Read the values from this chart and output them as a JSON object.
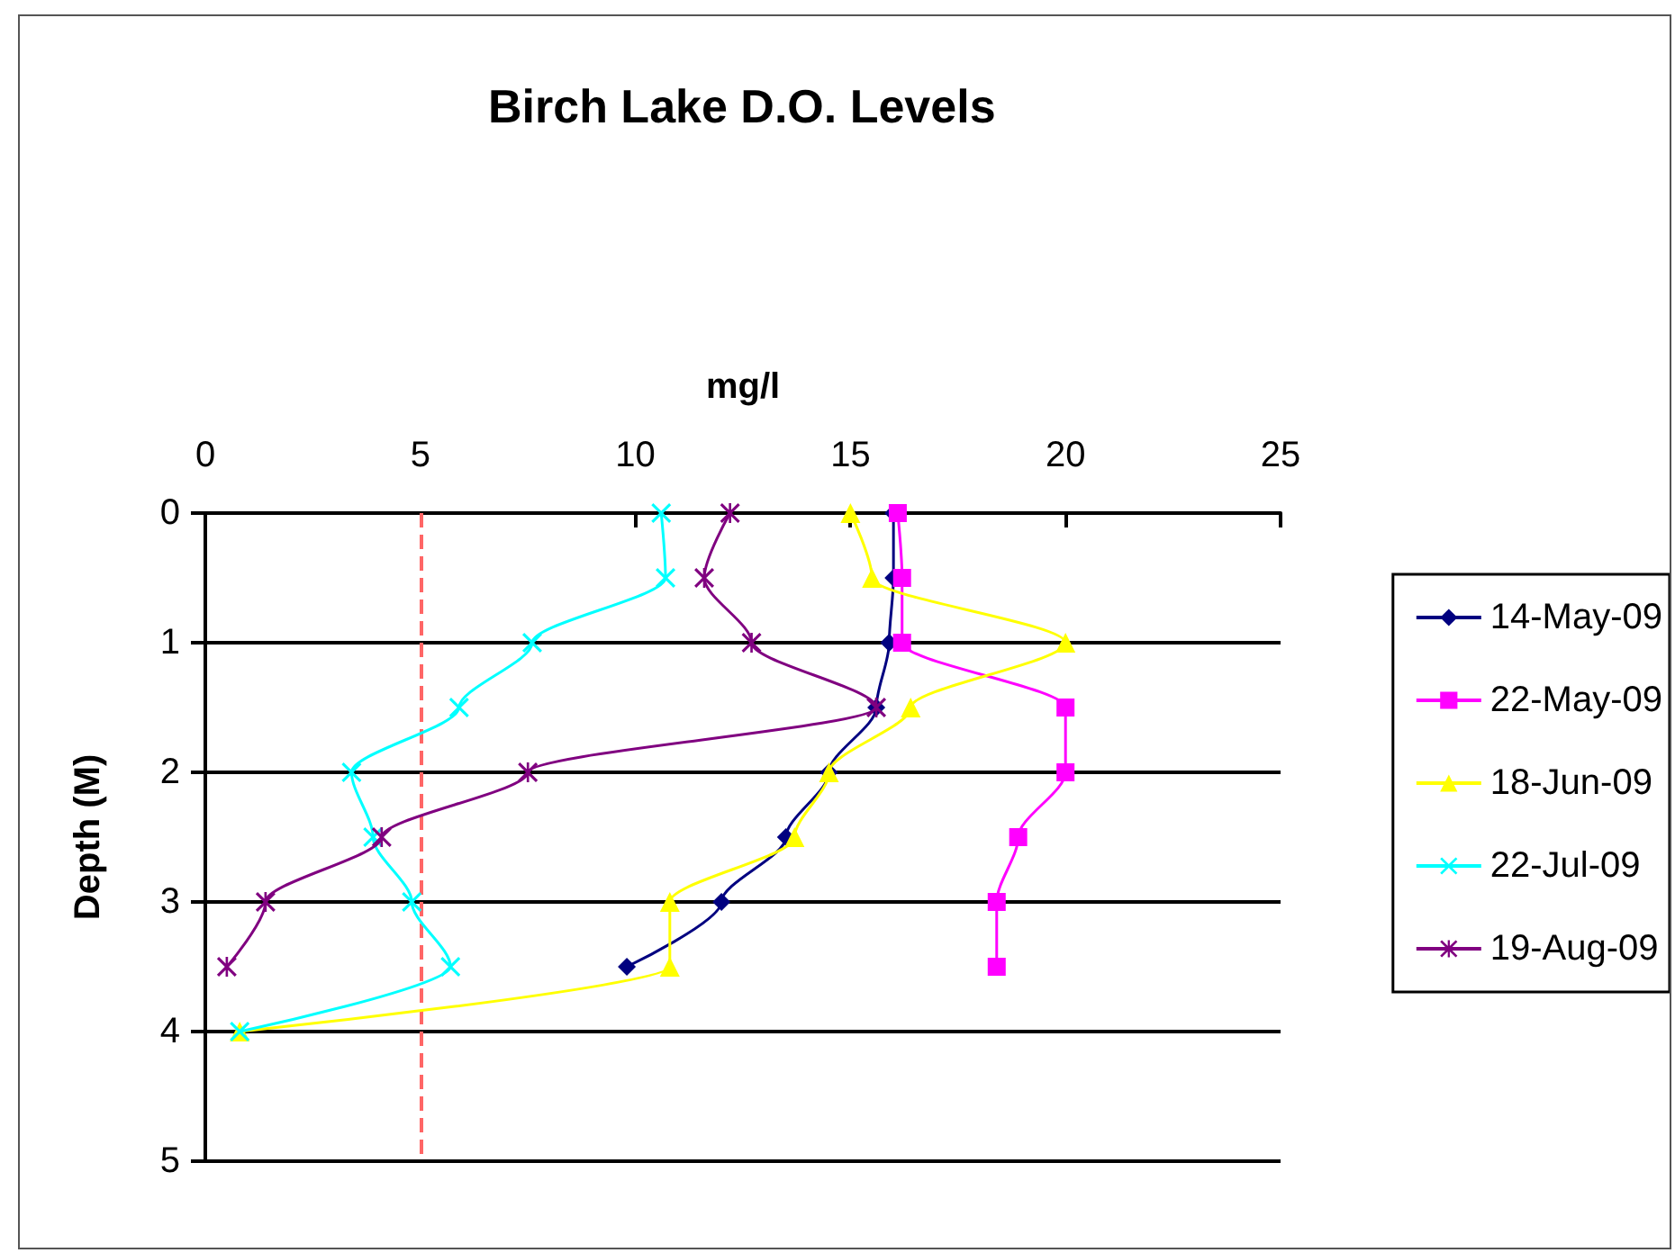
{
  "chart_data": {
    "type": "line",
    "title": "Birch Lake D.O. Levels",
    "xlabel": "mg/l",
    "ylabel": "Depth (M)",
    "xlim": [
      0,
      25
    ],
    "xticks": [
      0,
      5,
      10,
      15,
      20,
      25
    ],
    "ylim": [
      5,
      0
    ],
    "yticks": [
      0,
      1,
      2,
      3,
      4,
      5
    ],
    "grid": "y",
    "legend": "right",
    "ref_lines": [
      {
        "axis": "x",
        "value": 5,
        "color": "#ff6666",
        "line_style": "dashed"
      }
    ],
    "series": [
      {
        "name": "14-May-09",
        "color": "#000080",
        "marker": "diamond",
        "x": [
          16.0,
          16.0,
          15.9,
          15.6,
          14.5,
          13.5,
          12.0,
          9.8
        ],
        "values": [
          0,
          0.5,
          1,
          1.5,
          2,
          2.5,
          3,
          3.5
        ]
      },
      {
        "name": "22-May-09",
        "color": "#ff00ff",
        "marker": "square",
        "x": [
          16.1,
          16.2,
          16.2,
          20.0,
          20.0,
          18.9,
          18.4,
          18.4
        ],
        "values": [
          0,
          0.5,
          1,
          1.5,
          2,
          2.5,
          3,
          3.5
        ]
      },
      {
        "name": "18-Jun-09",
        "color": "#ffff00",
        "marker": "triangle",
        "x": [
          15.0,
          15.5,
          20.0,
          16.4,
          14.5,
          13.7,
          10.8,
          10.8,
          0.8
        ],
        "values": [
          0,
          0.5,
          1,
          1.5,
          2,
          2.5,
          3,
          3.5,
          4
        ]
      },
      {
        "name": "22-Jul-09",
        "color": "#00ffff",
        "marker": "cross",
        "x": [
          10.6,
          10.7,
          7.6,
          5.9,
          3.4,
          3.9,
          4.8,
          5.7,
          0.8
        ],
        "values": [
          0,
          0.5,
          1,
          1.5,
          2,
          2.5,
          3,
          3.5,
          4
        ]
      },
      {
        "name": "19-Aug-09",
        "color": "#800080",
        "marker": "star",
        "x": [
          12.2,
          11.6,
          12.7,
          15.6,
          7.5,
          4.1,
          1.4,
          0.5
        ],
        "values": [
          0,
          0.5,
          1,
          1.5,
          2,
          2.5,
          3,
          3.5
        ]
      }
    ]
  }
}
